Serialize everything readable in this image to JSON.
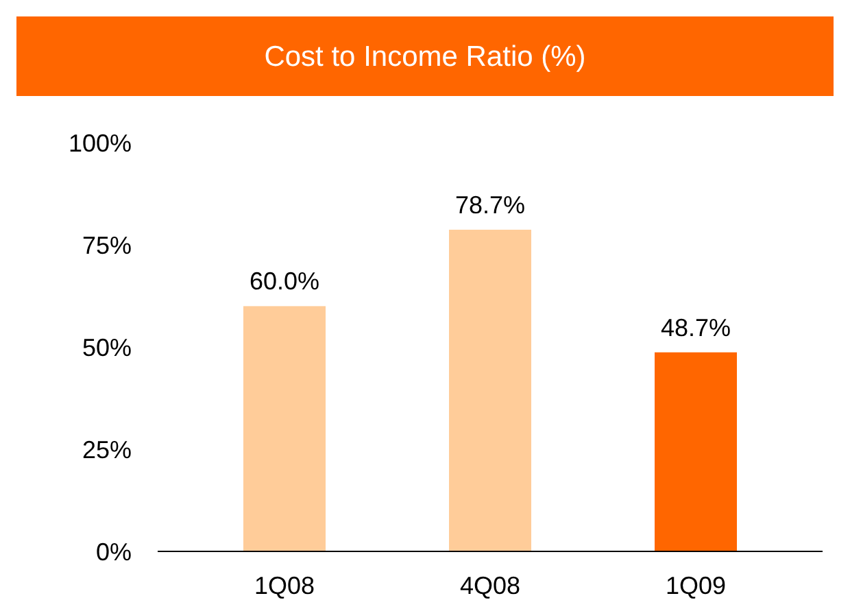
{
  "chart_data": {
    "type": "bar",
    "title": "Cost to Income Ratio (%)",
    "categories": [
      "1Q08",
      "4Q08",
      "1Q09"
    ],
    "values": [
      60.0,
      78.7,
      48.7
    ],
    "colors": [
      "#ffcc99",
      "#ffcc99",
      "#ff6600"
    ],
    "value_labels": [
      "60.0%",
      "78.7%",
      "48.7%"
    ],
    "ylim": [
      0,
      100
    ],
    "yticks": [
      {
        "value": 0,
        "label": "0%"
      },
      {
        "value": 25,
        "label": "25%"
      },
      {
        "value": 50,
        "label": "50%"
      },
      {
        "value": 75,
        "label": "75%"
      },
      {
        "value": 100,
        "label": "100%"
      }
    ]
  }
}
